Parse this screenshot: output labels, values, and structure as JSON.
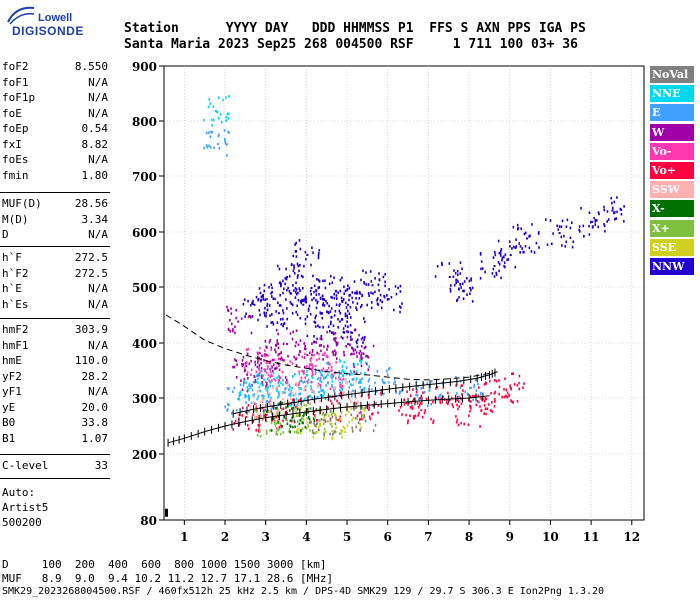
{
  "logo": {
    "line1": "Lowell",
    "line2": "DIGISONDE"
  },
  "header": {
    "row1": "Station      YYYY DAY   DDD HHMMSS P1  FFS S AXN PPS IGA PS",
    "row2": "Santa Maria 2023 Sep25 268 004500 RSF     1 711 100 03+ 36"
  },
  "params_group1": [
    {
      "name": "foF2",
      "value": "8.550"
    },
    {
      "name": "foF1",
      "value": "N/A"
    },
    {
      "name": "foF1p",
      "value": "N/A"
    },
    {
      "name": "foE",
      "value": "N/A"
    },
    {
      "name": "foEp",
      "value": "0.54"
    },
    {
      "name": "fxI",
      "value": "8.82"
    },
    {
      "name": "foEs",
      "value": "N/A"
    },
    {
      "name": "fmin",
      "value": "1.80"
    }
  ],
  "params_group2": [
    {
      "name": "MUF(D)",
      "value": "28.56"
    },
    {
      "name": "M(D)",
      "value": "3.34"
    },
    {
      "name": "D",
      "value": "N/A"
    }
  ],
  "params_group3": [
    {
      "name": "h`F",
      "value": "272.5"
    },
    {
      "name": "h`F2",
      "value": "272.5"
    },
    {
      "name": "h`E",
      "value": "N/A"
    },
    {
      "name": "h`Es",
      "value": "N/A"
    }
  ],
  "params_group4": [
    {
      "name": "hmF2",
      "value": "303.9"
    },
    {
      "name": "hmF1",
      "value": "N/A"
    },
    {
      "name": "hmE",
      "value": "110.0"
    },
    {
      "name": "yF2",
      "value": "28.2"
    },
    {
      "name": "yF1",
      "value": "N/A"
    },
    {
      "name": "yE",
      "value": "20.0"
    },
    {
      "name": "B0",
      "value": "33.8"
    },
    {
      "name": "B1",
      "value": "1.07"
    }
  ],
  "params_group5": [
    {
      "name": "C-level",
      "value": "33"
    }
  ],
  "autoscale": {
    "line1": "Auto:",
    "line2": "Artist5",
    "line3": "500200"
  },
  "legend": [
    {
      "label": "NoVal",
      "color": "#808080"
    },
    {
      "label": "NNE",
      "color": "#00d8f0"
    },
    {
      "label": "E",
      "color": "#3fa0ff"
    },
    {
      "label": "W",
      "color": "#a000a8"
    },
    {
      "label": "Vo-",
      "color": "#ff38b0"
    },
    {
      "label": "Vo+",
      "color": "#ff0040"
    },
    {
      "label": "SSW",
      "color": "#ffb0b0"
    },
    {
      "label": "X-",
      "color": "#007000"
    },
    {
      "label": "X+",
      "color": "#80c040"
    },
    {
      "label": "SSE",
      "color": "#d0d020"
    },
    {
      "label": "NNW",
      "color": "#2000d0"
    }
  ],
  "footer": {
    "line1": "D     100  200  400  600  800 1000 1500 3000 [km]",
    "line2": "MUF   8.9  9.0  9.4 10.2 11.2 12.7 17.1 28.6 [MHz]",
    "line3": "SMK29_2023268004500.RSF / 460fx512h 25 kHz 2.5 km / DPS-4D SMK29 129 / 29.7 S 306.3 E Ion2Png 1.3.20"
  },
  "chart_data": {
    "type": "scatter",
    "title": "",
    "xlabel": "",
    "ylabel": "",
    "xlim": [
      0.5,
      12.3
    ],
    "ylim": [
      80,
      900
    ],
    "x_ticks": [
      1,
      2,
      3,
      4,
      5,
      6,
      7,
      8,
      9,
      10,
      11,
      12
    ],
    "y_ticks": [
      80,
      200,
      300,
      400,
      500,
      600,
      700,
      800,
      900
    ],
    "grid": true,
    "legend_position": "right",
    "series": [
      {
        "name": "NNW",
        "color": "#2000d0",
        "points": [
          [
            2.7,
            470
          ],
          [
            3.0,
            480
          ],
          [
            3.3,
            455
          ],
          [
            3.6,
            490
          ],
          [
            3.9,
            470
          ],
          [
            4.1,
            500
          ],
          [
            4.4,
            480
          ],
          [
            4.7,
            495
          ],
          [
            5.0,
            470
          ],
          [
            5.3,
            490
          ],
          [
            5.6,
            505
          ],
          [
            4.3,
            430
          ],
          [
            4.8,
            440
          ],
          [
            5.1,
            420
          ],
          [
            6.0,
            480
          ],
          [
            7.5,
            520
          ],
          [
            8.0,
            500
          ],
          [
            8.6,
            540
          ],
          [
            9.0,
            560
          ],
          [
            9.4,
            590
          ],
          [
            10.2,
            600
          ],
          [
            11.0,
            620
          ],
          [
            11.5,
            640
          ],
          [
            4.0,
            560
          ],
          [
            3.5,
            520
          ]
        ]
      },
      {
        "name": "W",
        "color": "#a000a8",
        "points": [
          [
            2.5,
            360
          ],
          [
            2.7,
            340
          ],
          [
            3.0,
            380
          ],
          [
            3.2,
            355
          ],
          [
            3.5,
            400
          ],
          [
            4.0,
            380
          ],
          [
            4.5,
            395
          ],
          [
            5.0,
            400
          ],
          [
            5.3,
            370
          ],
          [
            2.3,
            440
          ]
        ]
      },
      {
        "name": "E",
        "color": "#3fa0ff",
        "points": [
          [
            2.3,
            300
          ],
          [
            2.8,
            305
          ],
          [
            3.3,
            310
          ],
          [
            3.8,
            320
          ],
          [
            4.3,
            325
          ],
          [
            4.8,
            330
          ],
          [
            5.3,
            335
          ],
          [
            6.0,
            330
          ],
          [
            7.0,
            315
          ],
          [
            8.0,
            320
          ],
          [
            1.8,
            760
          ]
        ]
      },
      {
        "name": "NNE",
        "color": "#00d8f0",
        "points": [
          [
            2.6,
            320
          ],
          [
            3.1,
            330
          ],
          [
            3.6,
            315
          ],
          [
            4.1,
            330
          ],
          [
            4.6,
            340
          ],
          [
            5.1,
            345
          ],
          [
            1.75,
            820
          ]
        ]
      },
      {
        "name": "Vo-",
        "color": "#ff38b0",
        "points": [
          [
            2.8,
            370
          ],
          [
            3.3,
            360
          ],
          [
            3.8,
            350
          ],
          [
            4.2,
            360
          ],
          [
            4.6,
            345
          ]
        ]
      },
      {
        "name": "Vo+",
        "color": "#ff0040",
        "points": [
          [
            2.5,
            268
          ],
          [
            3.0,
            272
          ],
          [
            3.5,
            275
          ],
          [
            4.5,
            285
          ],
          [
            5.5,
            290
          ],
          [
            6.5,
            293
          ],
          [
            7.5,
            298
          ],
          [
            8.3,
            300
          ],
          [
            8.6,
            310
          ],
          [
            9.0,
            320
          ],
          [
            6.8,
            280
          ],
          [
            8.0,
            278
          ]
        ]
      },
      {
        "name": "X+",
        "color": "#80c040",
        "points": [
          [
            3.0,
            260
          ],
          [
            3.5,
            262
          ],
          [
            4.0,
            265
          ],
          [
            4.5,
            260
          ]
        ]
      },
      {
        "name": "SSW",
        "color": "#ffb0b0",
        "points": [
          [
            2.9,
            290
          ],
          [
            3.4,
            300
          ],
          [
            4.0,
            305
          ],
          [
            4.9,
            312
          ]
        ]
      },
      {
        "name": "SSE",
        "color": "#d0d020",
        "points": [
          [
            4.0,
            258
          ],
          [
            4.6,
            256
          ],
          [
            5.1,
            262
          ]
        ]
      },
      {
        "name": "X-",
        "color": "#007000",
        "points": [
          [
            3.3,
            268
          ],
          [
            3.9,
            270
          ]
        ]
      },
      {
        "name": "NoVal",
        "color": "#808080",
        "points": [
          [
            4.4,
            262
          ],
          [
            5.4,
            268
          ]
        ]
      }
    ],
    "trace_o": [
      [
        0.6,
        220
      ],
      [
        1.0,
        228
      ],
      [
        1.5,
        240
      ],
      [
        2.0,
        250
      ],
      [
        2.5,
        258
      ],
      [
        3.0,
        265
      ],
      [
        3.5,
        270
      ],
      [
        4.0,
        275
      ],
      [
        4.5,
        280
      ],
      [
        5.0,
        284
      ],
      [
        5.5,
        287
      ],
      [
        6.0,
        290
      ],
      [
        6.5,
        293
      ],
      [
        7.0,
        296
      ],
      [
        7.5,
        298
      ],
      [
        8.0,
        300
      ],
      [
        8.5,
        304
      ]
    ],
    "trace_x": [
      [
        2.2,
        272
      ],
      [
        2.7,
        280
      ],
      [
        3.2,
        286
      ],
      [
        3.7,
        292
      ],
      [
        4.2,
        298
      ],
      [
        4.7,
        303
      ],
      [
        5.2,
        308
      ],
      [
        5.7,
        313
      ],
      [
        6.2,
        318
      ],
      [
        6.7,
        322
      ],
      [
        7.2,
        326
      ],
      [
        7.7,
        330
      ],
      [
        8.2,
        336
      ],
      [
        8.5,
        342
      ],
      [
        8.7,
        348
      ]
    ],
    "profile": [
      [
        0.55,
        450
      ],
      [
        1.0,
        430
      ],
      [
        1.5,
        405
      ],
      [
        2.0,
        390
      ],
      [
        2.5,
        378
      ],
      [
        3.0,
        368
      ],
      [
        3.5,
        360
      ],
      [
        4.0,
        354
      ],
      [
        4.5,
        348
      ],
      [
        5.0,
        344
      ],
      [
        5.5,
        342
      ],
      [
        6.0,
        338
      ],
      [
        6.5,
        334
      ],
      [
        7.0,
        333
      ],
      [
        7.5,
        335
      ],
      [
        8.0,
        338
      ],
      [
        8.5,
        345
      ]
    ]
  }
}
